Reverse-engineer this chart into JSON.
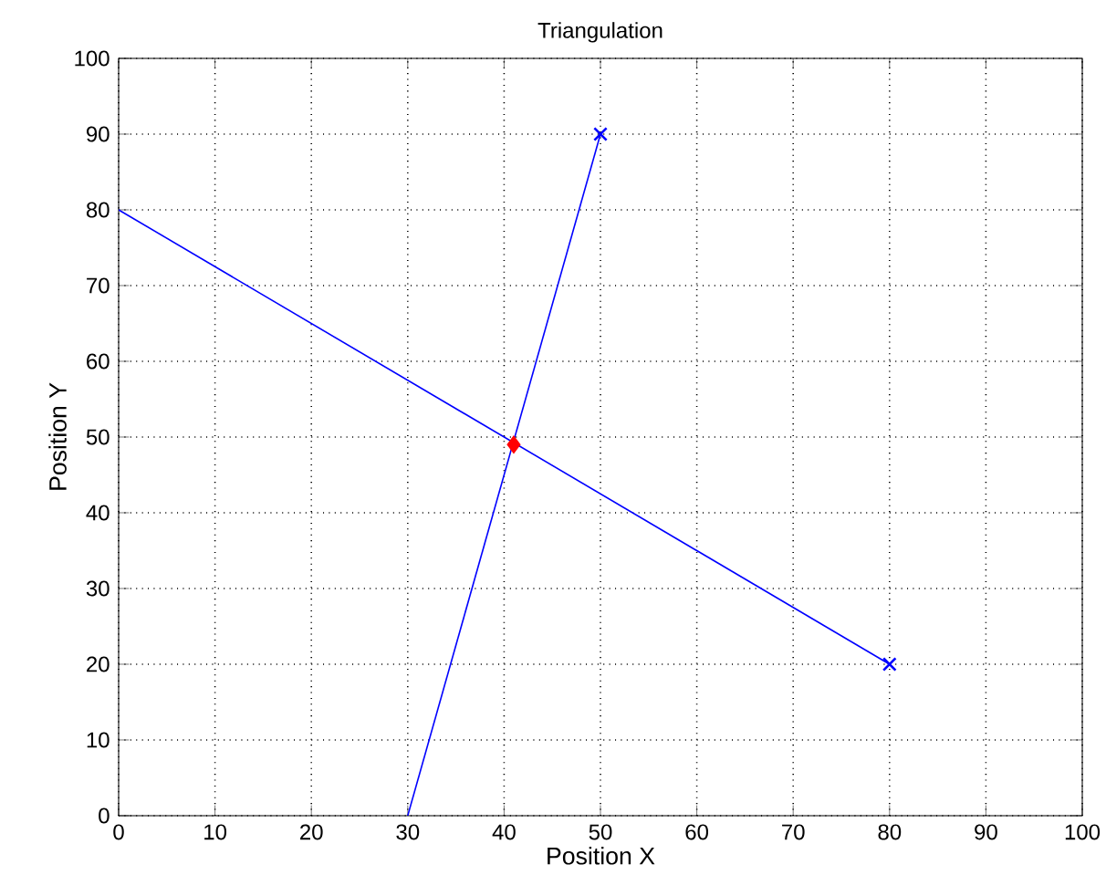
{
  "chart_data": {
    "type": "line",
    "title": "Triangulation",
    "xlabel": "Position X",
    "ylabel": "Position Y",
    "xlim": [
      0,
      100
    ],
    "ylim": [
      0,
      100
    ],
    "xticks": [
      0,
      10,
      20,
      30,
      40,
      50,
      60,
      70,
      80,
      90,
      100
    ],
    "yticks": [
      0,
      10,
      20,
      30,
      40,
      50,
      60,
      70,
      80,
      90,
      100
    ],
    "grid": true,
    "line_style": "solid",
    "series": [
      {
        "color": "#0000ff",
        "x": [
          0,
          80
        ],
        "values": [
          80,
          20
        ],
        "marker": "none"
      },
      {
        "color": "#0000ff",
        "x": [
          30,
          50
        ],
        "values": [
          0,
          90
        ],
        "marker": "none"
      },
      {
        "type": "scatter",
        "color": "#0000ff",
        "x": [
          80,
          50
        ],
        "values": [
          20,
          90
        ],
        "marker": "cross"
      },
      {
        "type": "scatter",
        "color": "#ff0000",
        "x": [
          41
        ],
        "values": [
          49
        ],
        "marker": "diamond"
      }
    ]
  }
}
